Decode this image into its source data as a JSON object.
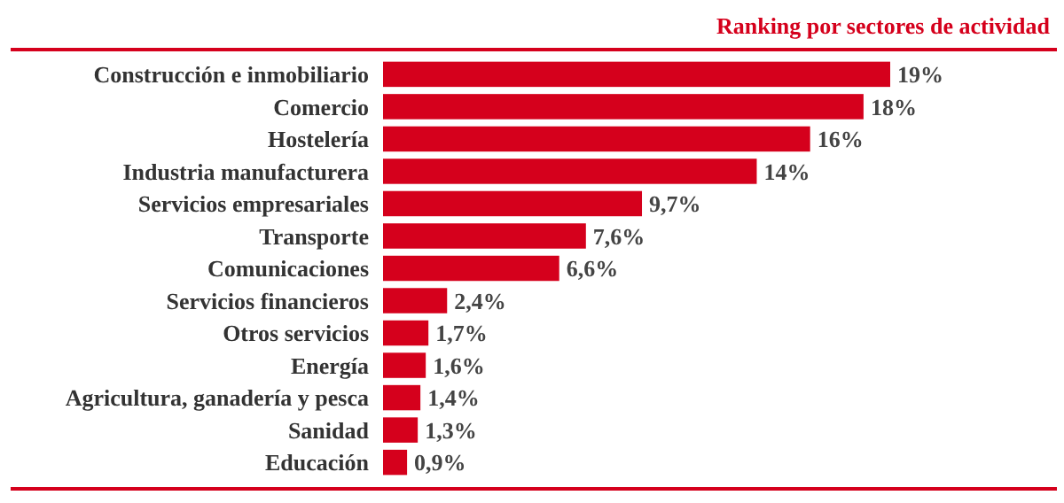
{
  "chart_data": {
    "type": "bar",
    "orientation": "horizontal",
    "title": "Ranking por sectores de actividad",
    "categories": [
      "Construcción e inmobiliario",
      "Comercio",
      "Hostelería",
      "Industria manufacturera",
      "Servicios empresariales",
      "Transporte",
      "Comunicaciones",
      "Servicios financieros",
      "Otros servicios",
      "Energía",
      "Agricultura, ganadería y pesca",
      "Sanidad",
      "Educación"
    ],
    "values": [
      19,
      18,
      16,
      14,
      9.7,
      7.6,
      6.6,
      2.4,
      1.7,
      1.6,
      1.4,
      1.3,
      0.9
    ],
    "value_labels": [
      "19%",
      "18%",
      "16%",
      "14%",
      "9,7%",
      "7,6%",
      "6,6%",
      "2,4%",
      "1,7%",
      "1,6%",
      "1,4%",
      "1,3%",
      "0,9%"
    ],
    "color": "#d5001c"
  }
}
